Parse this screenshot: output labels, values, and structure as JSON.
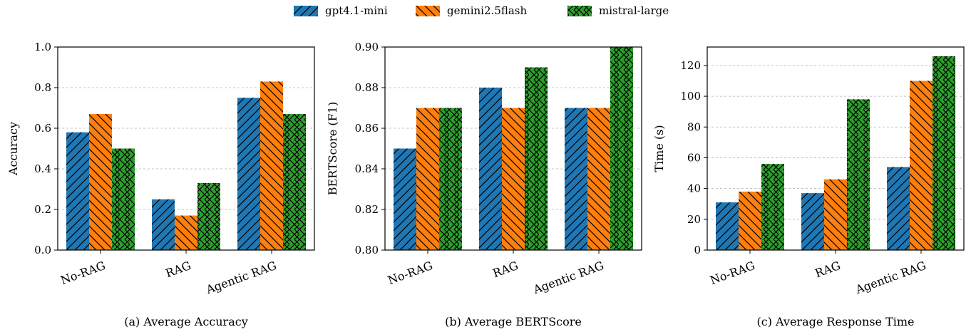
{
  "legend": {
    "placement": "top-center",
    "entries": [
      {
        "name": "gpt4.1-mini",
        "color": "#1f77b4",
        "hatch": "diag-forward"
      },
      {
        "name": "gemini2.5flash",
        "color": "#ff7f0e",
        "hatch": "diag-backward"
      },
      {
        "name": "mistral-large",
        "color": "#2ca02c",
        "hatch": "cross"
      }
    ]
  },
  "chart_data": [
    {
      "type": "bar",
      "title": "(a) Average Accuracy",
      "ylabel": "Accuracy",
      "categories": [
        "No-RAG",
        "RAG",
        "Agentic RAG"
      ],
      "ylim": [
        0.0,
        1.0
      ],
      "yticks": [
        "0.0",
        "0.2",
        "0.4",
        "0.6",
        "0.8",
        "1.0"
      ],
      "grid": "y-dashed",
      "series": [
        {
          "name": "gpt4.1-mini",
          "values": [
            0.58,
            0.25,
            0.75
          ]
        },
        {
          "name": "gemini2.5flash",
          "values": [
            0.67,
            0.17,
            0.83
          ]
        },
        {
          "name": "mistral-large",
          "values": [
            0.5,
            0.33,
            0.67
          ]
        }
      ]
    },
    {
      "type": "bar",
      "title": "(b) Average BERTScore",
      "ylabel": "BERTScore (F1)",
      "categories": [
        "No-RAG",
        "RAG",
        "Agentic RAG"
      ],
      "ylim": [
        0.8,
        0.9
      ],
      "yticks": [
        "0.80",
        "0.82",
        "0.84",
        "0.86",
        "0.88",
        "0.90"
      ],
      "grid": "y-dashed",
      "series": [
        {
          "name": "gpt4.1-mini",
          "values": [
            0.85,
            0.88,
            0.87
          ]
        },
        {
          "name": "gemini2.5flash",
          "values": [
            0.87,
            0.87,
            0.87
          ]
        },
        {
          "name": "mistral-large",
          "values": [
            0.87,
            0.89,
            0.9
          ]
        }
      ]
    },
    {
      "type": "bar",
      "title": "(c) Average Response Time",
      "ylabel": "Time (s)",
      "categories": [
        "No-RAG",
        "RAG",
        "Agentic RAG"
      ],
      "ylim": [
        0,
        132
      ],
      "yticks": [
        "0",
        "20",
        "40",
        "60",
        "80",
        "100",
        "120"
      ],
      "grid": "y-dashed",
      "series": [
        {
          "name": "gpt4.1-mini",
          "values": [
            31,
            37,
            54
          ]
        },
        {
          "name": "gemini2.5flash",
          "values": [
            38,
            46,
            110
          ]
        },
        {
          "name": "mistral-large",
          "values": [
            56,
            98,
            126
          ]
        }
      ]
    }
  ]
}
